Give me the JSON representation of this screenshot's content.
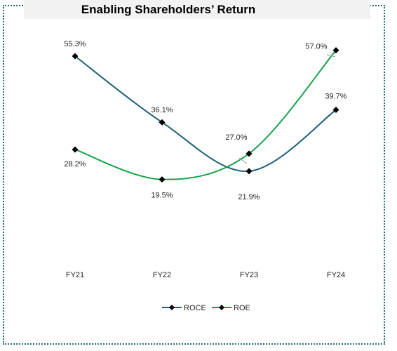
{
  "chart_data": {
    "type": "line",
    "title": "Enabling Shareholders’ Return",
    "categories": [
      "FY21",
      "FY22",
      "FY23",
      "FY24"
    ],
    "series": [
      {
        "name": "ROCE",
        "values": [
          55.3,
          36.1,
          21.9,
          39.7
        ],
        "labels": [
          "55.3%",
          "36.1%",
          "21.9%",
          "39.7%"
        ],
        "color": "#1f5f7a",
        "marker": "diamond"
      },
      {
        "name": "ROE",
        "values": [
          28.2,
          19.5,
          27.0,
          57.0
        ],
        "labels": [
          "28.2%",
          "19.5%",
          "27.0%",
          "57.0%"
        ],
        "color": "#16a34a",
        "marker": "diamond"
      }
    ],
    "xlabel": "",
    "ylabel": "",
    "ylim": [
      0,
      60
    ],
    "grid": false,
    "smooth": true,
    "legend": "bottom",
    "marker_color": "#000000"
  }
}
